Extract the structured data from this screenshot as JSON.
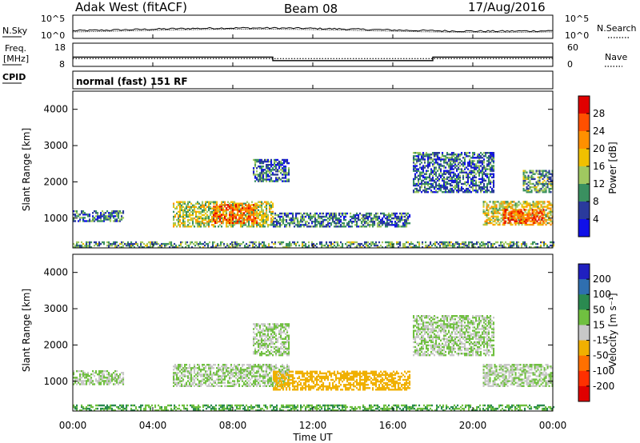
{
  "header": {
    "title": "Adak West (fitACF)",
    "beam": "Beam 08",
    "date": "17/Aug/2016"
  },
  "sky_panel": {
    "left_label": "N.Sky",
    "right_label": "N.Search",
    "left_top_tick": "10^5",
    "left_bottom_tick": "10^0",
    "right_top_tick": "10^5",
    "right_bottom_tick": "10^0"
  },
  "freq_panel": {
    "left_label": "Freq.",
    "left_unit": "[MHz]",
    "right_label": "Nave",
    "left_ticks": [
      "18",
      "8"
    ],
    "right_ticks": [
      "60",
      "0"
    ]
  },
  "cpid_panel": {
    "label": "CPID",
    "mode_text": "normal (fast) 151 RF"
  },
  "power_panel": {
    "ylabel": "Slant Range [km]",
    "yticks": [
      "4000",
      "3000",
      "2000",
      "1000"
    ],
    "colorbar_label": "Power [dB]",
    "colorbar_ticks": [
      "28",
      "24",
      "20",
      "16",
      "12",
      "8",
      "4"
    ],
    "colorbar_colors": [
      "#e00000",
      "#ff5000",
      "#ff9000",
      "#f0c000",
      "#a0c860",
      "#3a9060",
      "#2a3a9c",
      "#1010e8"
    ]
  },
  "velocity_panel": {
    "ylabel": "Slant Range [km]",
    "yticks": [
      "4000",
      "3000",
      "2000",
      "1000"
    ],
    "colorbar_label": "Velocity [m s⁻¹]",
    "colorbar_ticks": [
      "200",
      "100",
      "50",
      "15",
      "-15",
      "-50",
      "-100",
      "-200"
    ],
    "colorbar_colors": [
      "#2020c0",
      "#2f6fb0",
      "#2a8a50",
      "#70c040",
      "#c8c8c8",
      "#f0b000",
      "#ff7000",
      "#ff3000",
      "#e00000"
    ]
  },
  "xaxis": {
    "label": "Time UT",
    "ticks": [
      "00:00",
      "04:00",
      "08:00",
      "12:00",
      "16:00",
      "20:00",
      "00:00"
    ]
  },
  "chart_data": [
    {
      "type": "line",
      "name": "noise",
      "series": [
        {
          "name": "N.Sky"
        },
        {
          "name": "N.Search"
        }
      ],
      "y_scale": "log",
      "ylim": [
        1,
        100000
      ]
    },
    {
      "type": "line",
      "name": "frequency",
      "xlabel": "",
      "ylabel": "Freq. [MHz]",
      "ylim": [
        8,
        18
      ],
      "x": [
        "00:00",
        "10:00",
        "10:00",
        "18:00",
        "18:00",
        "24:00"
      ],
      "series": [
        {
          "name": "Freq.",
          "values": [
            12.0,
            12.0,
            10.5,
            10.5,
            12.0,
            12.0
          ]
        },
        {
          "name": "Nave",
          "values": [
            20,
            20,
            20,
            20,
            20,
            20
          ]
        }
      ],
      "y2lim": [
        0,
        60
      ]
    },
    {
      "type": "heatmap",
      "name": "power",
      "xlabel": "Time UT",
      "ylabel": "Slant Range [km]",
      "xlim": [
        0,
        24
      ],
      "ylim": [
        180,
        4500
      ],
      "colorbar": {
        "label": "Power [dB]",
        "range": [
          0,
          30
        ]
      },
      "regions": [
        {
          "t": [
            0.0,
            2.5
          ],
          "r": [
            900,
            1200
          ],
          "level": 8
        },
        {
          "t": [
            5.0,
            10.0
          ],
          "r": [
            750,
            1450
          ],
          "level": 14
        },
        {
          "t": [
            7.0,
            9.2
          ],
          "r": [
            850,
            1350
          ],
          "level": 22
        },
        {
          "t": [
            9.0,
            10.8
          ],
          "r": [
            2000,
            2600
          ],
          "level": 7
        },
        {
          "t": [
            10.0,
            16.8
          ],
          "r": [
            750,
            1150
          ],
          "level": 8
        },
        {
          "t": [
            17.0,
            21.0
          ],
          "r": [
            1700,
            2800
          ],
          "level": 7
        },
        {
          "t": [
            20.5,
            24.0
          ],
          "r": [
            800,
            1450
          ],
          "level": 16
        },
        {
          "t": [
            21.5,
            23.5
          ],
          "r": [
            850,
            1250
          ],
          "level": 24
        },
        {
          "t": [
            22.5,
            24.0
          ],
          "r": [
            1700,
            2300
          ],
          "level": 10
        },
        {
          "t": [
            0.0,
            24.0
          ],
          "r": [
            180,
            350
          ],
          "level": 10
        }
      ]
    },
    {
      "type": "heatmap",
      "name": "velocity",
      "xlabel": "Time UT",
      "ylabel": "Slant Range [km]",
      "xlim": [
        0,
        24
      ],
      "ylim": [
        180,
        4500
      ],
      "colorbar": {
        "label": "Velocity [m s⁻¹]",
        "range": [
          -200,
          200
        ]
      },
      "regions": [
        {
          "t": [
            0.0,
            2.5
          ],
          "r": [
            900,
            1300
          ],
          "level": 0
        },
        {
          "t": [
            5.0,
            10.8
          ],
          "r": [
            850,
            1450
          ],
          "level": 0
        },
        {
          "t": [
            9.0,
            10.8
          ],
          "r": [
            1700,
            2600
          ],
          "level": 0
        },
        {
          "t": [
            10.0,
            16.8
          ],
          "r": [
            750,
            1250
          ],
          "level": -60
        },
        {
          "t": [
            17.0,
            21.0
          ],
          "r": [
            1700,
            2800
          ],
          "level": 0
        },
        {
          "t": [
            20.5,
            24.0
          ],
          "r": [
            850,
            1450
          ],
          "level": 0
        },
        {
          "t": [
            0.0,
            24.0
          ],
          "r": [
            180,
            350
          ],
          "level": 30
        }
      ]
    }
  ]
}
